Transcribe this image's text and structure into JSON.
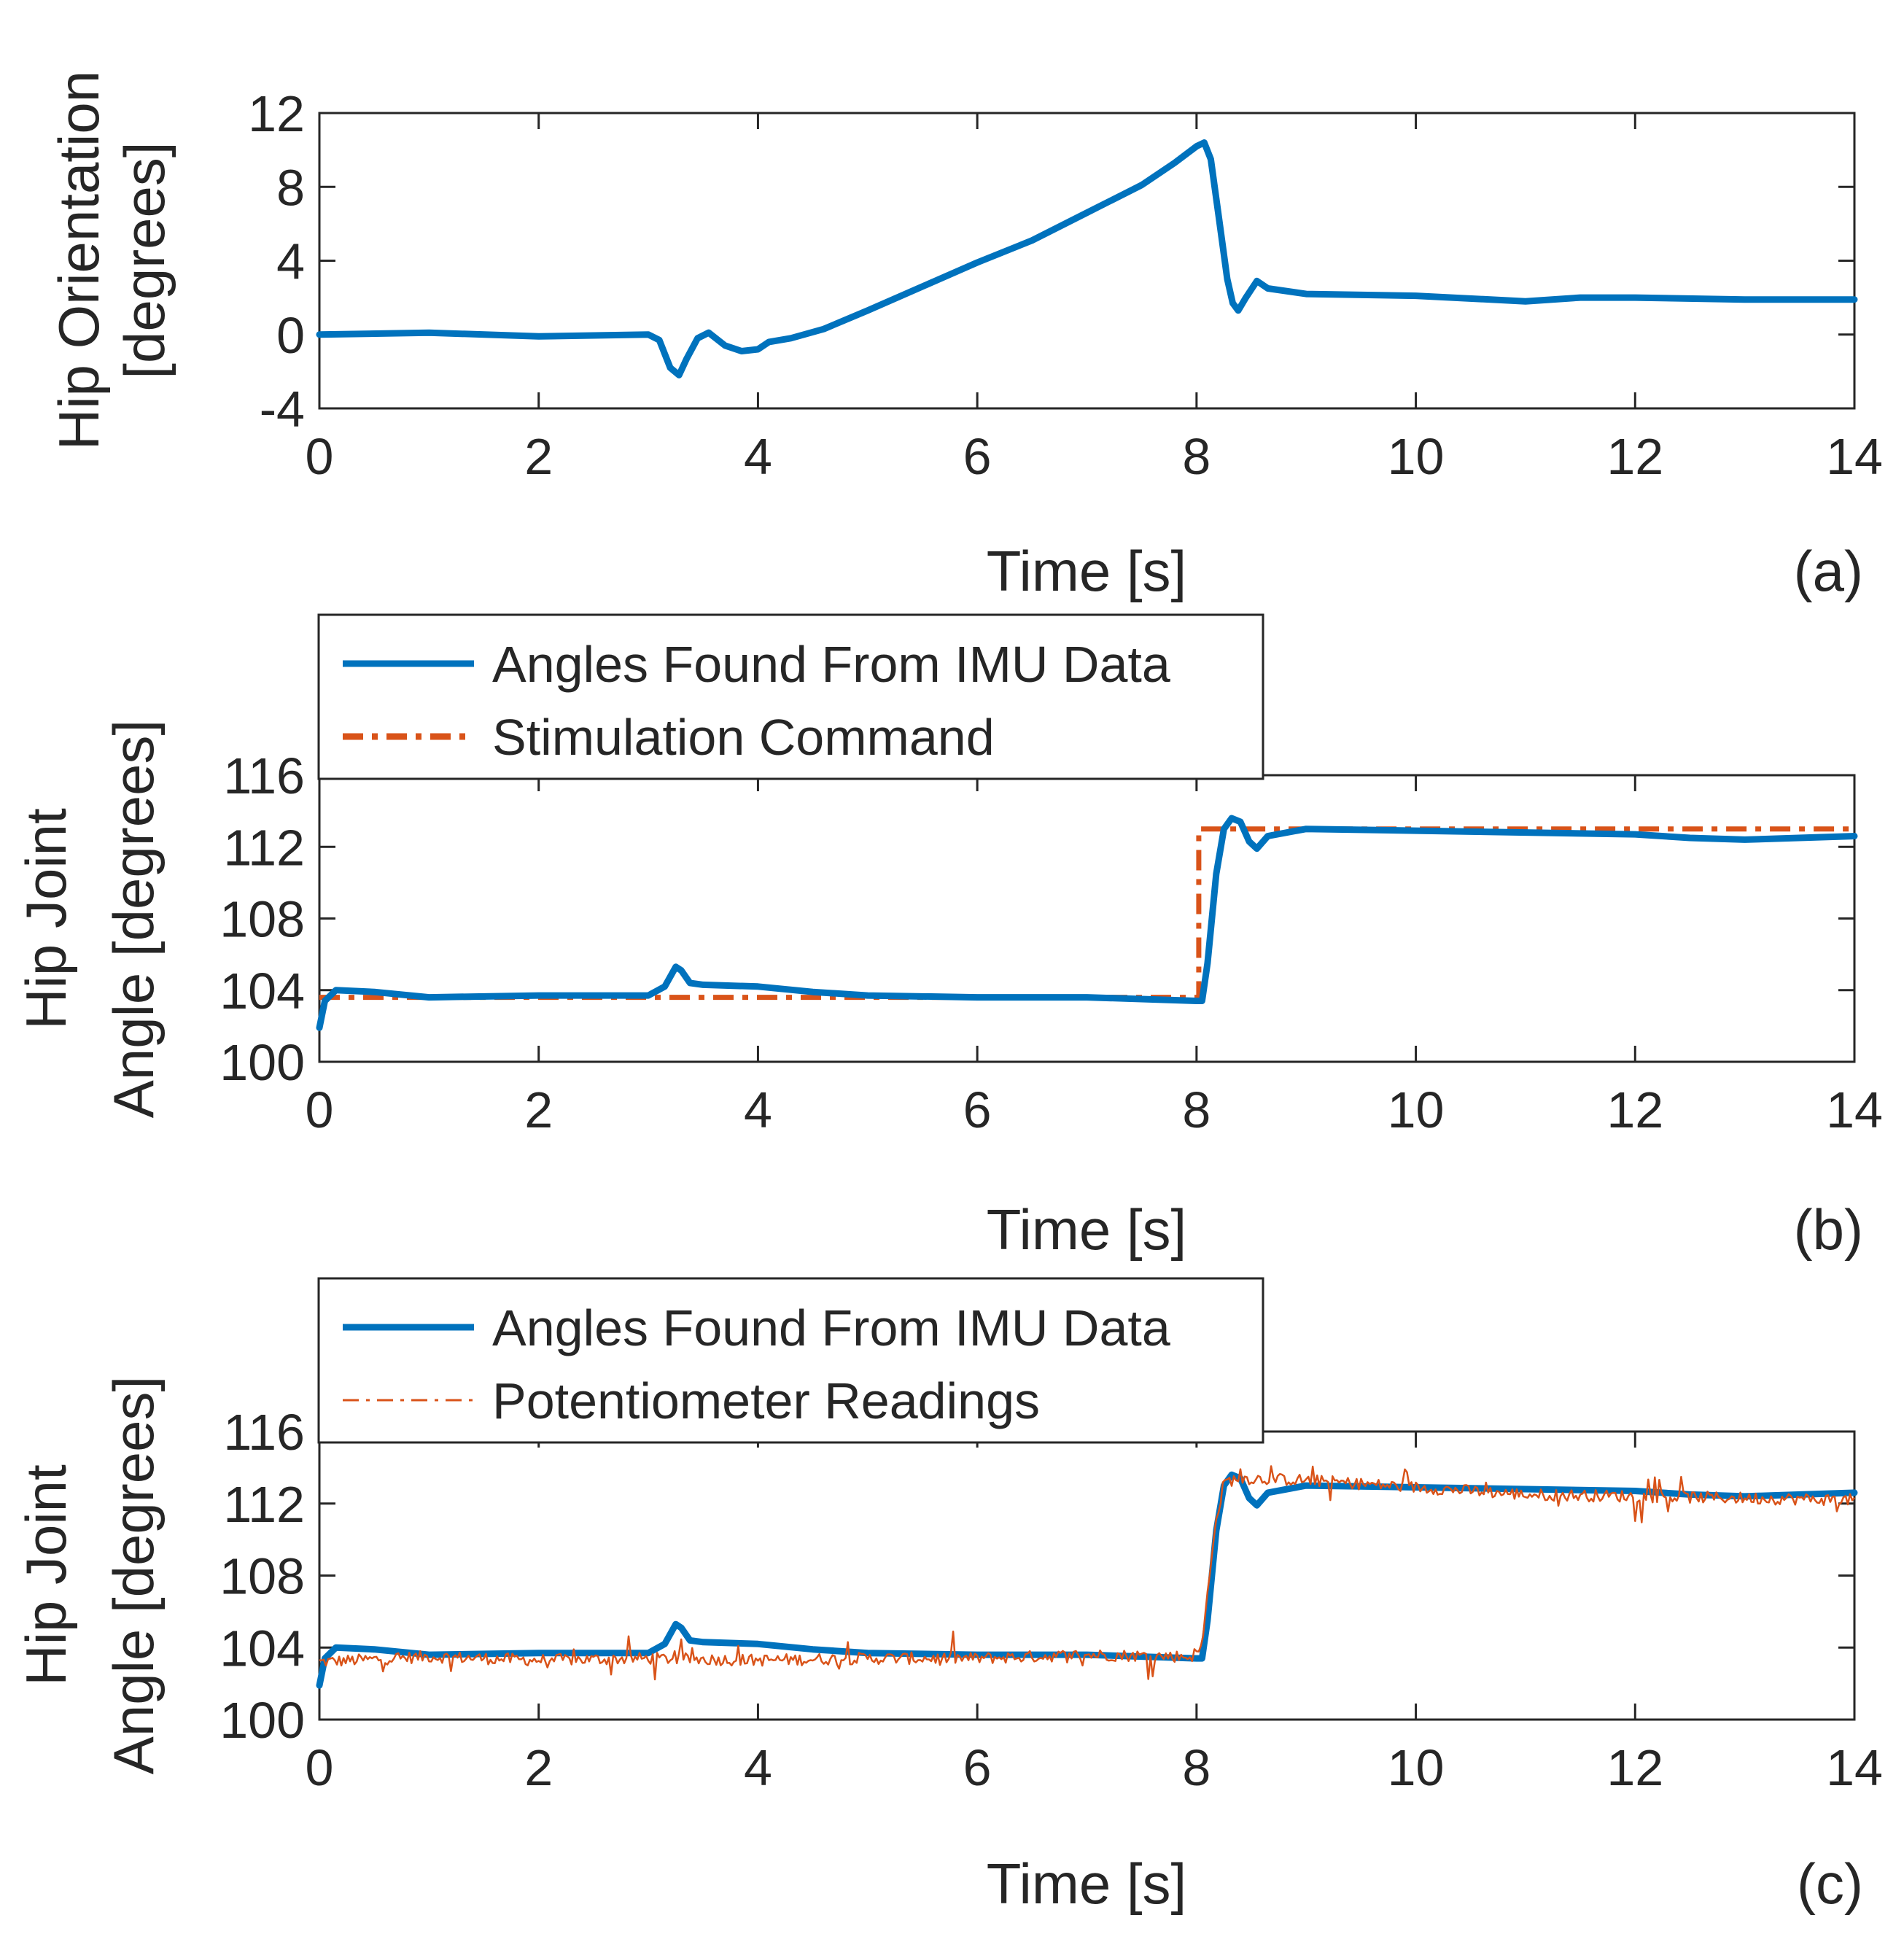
{
  "chart_data": [
    {
      "type": "line",
      "panel_label": "(a)",
      "xlabel": "Time [s]",
      "ylabel_lines": [
        "Hip Orientation",
        "[degrees]"
      ],
      "xlim": [
        0,
        14
      ],
      "ylim": [
        -4,
        12
      ],
      "xticks": [
        0,
        2,
        4,
        6,
        8,
        10,
        12,
        14
      ],
      "yticks": [
        -4,
        0,
        4,
        8,
        12
      ],
      "legend": null,
      "series": [
        {
          "name": "Hip Orientation",
          "color": "#0072BD",
          "style": "solid",
          "points": [
            [
              0,
              0
            ],
            [
              1,
              0.1
            ],
            [
              2,
              -0.1
            ],
            [
              3,
              0
            ],
            [
              3.1,
              -0.3
            ],
            [
              3.2,
              -1.8
            ],
            [
              3.28,
              -2.2
            ],
            [
              3.35,
              -1.3
            ],
            [
              3.45,
              -0.2
            ],
            [
              3.55,
              0.1
            ],
            [
              3.7,
              -0.6
            ],
            [
              3.85,
              -0.9
            ],
            [
              4,
              -0.8
            ],
            [
              4.1,
              -0.4
            ],
            [
              4.3,
              -0.2
            ],
            [
              4.6,
              0.3
            ],
            [
              5,
              1.3
            ],
            [
              5.5,
              2.6
            ],
            [
              6,
              3.9
            ],
            [
              6.5,
              5.1
            ],
            [
              7,
              6.6
            ],
            [
              7.5,
              8.1
            ],
            [
              7.8,
              9.3
            ],
            [
              8,
              10.2
            ],
            [
              8.07,
              10.4
            ],
            [
              8.13,
              9.5
            ],
            [
              8.2,
              6.5
            ],
            [
              8.28,
              3
            ],
            [
              8.33,
              1.7
            ],
            [
              8.38,
              1.3
            ],
            [
              8.45,
              2
            ],
            [
              8.55,
              2.9
            ],
            [
              8.65,
              2.5
            ],
            [
              9,
              2.2
            ],
            [
              10,
              2.1
            ],
            [
              11,
              1.8
            ],
            [
              11.5,
              2
            ],
            [
              12,
              2
            ],
            [
              13,
              1.9
            ],
            [
              14,
              1.9
            ]
          ]
        }
      ]
    },
    {
      "type": "line",
      "panel_label": "(b)",
      "xlabel": "Time [s]",
      "ylabel_lines": [
        "Hip Joint",
        "Angle [degrees]"
      ],
      "xlim": [
        0,
        14
      ],
      "ylim": [
        100,
        116
      ],
      "xticks": [
        0,
        2,
        4,
        6,
        8,
        10,
        12,
        14
      ],
      "yticks": [
        100,
        104,
        108,
        112,
        116
      ],
      "legend": [
        "Angles Found From IMU Data",
        "Stimulation Command"
      ],
      "series": [
        {
          "name": "Angles Found From IMU Data",
          "color": "#0072BD",
          "style": "solid",
          "points": [
            [
              0,
              101.9
            ],
            [
              0.05,
              103.4
            ],
            [
              0.15,
              104
            ],
            [
              0.5,
              103.9
            ],
            [
              1,
              103.6
            ],
            [
              2,
              103.7
            ],
            [
              3,
              103.7
            ],
            [
              3.15,
              104.2
            ],
            [
              3.25,
              105.3
            ],
            [
              3.3,
              105.1
            ],
            [
              3.38,
              104.4
            ],
            [
              3.5,
              104.3
            ],
            [
              4,
              104.2
            ],
            [
              4.5,
              103.9
            ],
            [
              5,
              103.7
            ],
            [
              6,
              103.6
            ],
            [
              7,
              103.6
            ],
            [
              7.5,
              103.5
            ],
            [
              8,
              103.4
            ],
            [
              8.05,
              103.4
            ],
            [
              8.1,
              105.5
            ],
            [
              8.18,
              110.5
            ],
            [
              8.25,
              113
            ],
            [
              8.32,
              113.6
            ],
            [
              8.4,
              113.4
            ],
            [
              8.48,
              112.3
            ],
            [
              8.55,
              111.9
            ],
            [
              8.65,
              112.6
            ],
            [
              9,
              113
            ],
            [
              10,
              112.9
            ],
            [
              11,
              112.8
            ],
            [
              12,
              112.7
            ],
            [
              12.5,
              112.5
            ],
            [
              13,
              112.4
            ],
            [
              14,
              112.6
            ]
          ]
        },
        {
          "name": "Stimulation Command",
          "color": "#D95319",
          "style": "dashdot",
          "points": [
            [
              0,
              103.6
            ],
            [
              8.02,
              103.6
            ],
            [
              8.02,
              113
            ],
            [
              14,
              113
            ]
          ]
        }
      ]
    },
    {
      "type": "line",
      "panel_label": "(c)",
      "xlabel": "Time [s]",
      "ylabel_lines": [
        "Hip Joint",
        "Angle [degrees]"
      ],
      "xlim": [
        0,
        14
      ],
      "ylim": [
        100,
        116
      ],
      "xticks": [
        0,
        2,
        4,
        6,
        8,
        10,
        12,
        14
      ],
      "yticks": [
        100,
        104,
        108,
        112,
        116
      ],
      "legend": [
        "Angles Found From IMU Data",
        "Potentiometer Readings"
      ],
      "series": [
        {
          "name": "Angles Found From IMU Data",
          "color": "#0072BD",
          "style": "solid",
          "points": [
            [
              0,
              101.9
            ],
            [
              0.05,
              103.4
            ],
            [
              0.15,
              104
            ],
            [
              0.5,
              103.9
            ],
            [
              1,
              103.6
            ],
            [
              2,
              103.7
            ],
            [
              3,
              103.7
            ],
            [
              3.15,
              104.2
            ],
            [
              3.25,
              105.3
            ],
            [
              3.3,
              105.1
            ],
            [
              3.38,
              104.4
            ],
            [
              3.5,
              104.3
            ],
            [
              4,
              104.2
            ],
            [
              4.5,
              103.9
            ],
            [
              5,
              103.7
            ],
            [
              6,
              103.6
            ],
            [
              7,
              103.6
            ],
            [
              7.5,
              103.5
            ],
            [
              8,
              103.4
            ],
            [
              8.05,
              103.4
            ],
            [
              8.1,
              105.5
            ],
            [
              8.18,
              110.5
            ],
            [
              8.25,
              113
            ],
            [
              8.32,
              113.6
            ],
            [
              8.4,
              113.4
            ],
            [
              8.48,
              112.3
            ],
            [
              8.55,
              111.9
            ],
            [
              8.65,
              112.6
            ],
            [
              9,
              113
            ],
            [
              10,
              112.9
            ],
            [
              11,
              112.8
            ],
            [
              12,
              112.7
            ],
            [
              12.5,
              112.5
            ],
            [
              13,
              112.4
            ],
            [
              14,
              112.6
            ]
          ]
        },
        {
          "name": "Potentiometer Readings",
          "color": "#D95319",
          "style": "dashdot-noisy",
          "points": [
            [
              0,
              103.2
            ],
            [
              1,
              103.5
            ],
            [
              2,
              103.3
            ],
            [
              3,
              103.4
            ],
            [
              4,
              103.3
            ],
            [
              5,
              103.4
            ],
            [
              6,
              103.4
            ],
            [
              7,
              103.6
            ],
            [
              7.95,
              103.5
            ],
            [
              8.05,
              104
            ],
            [
              8.15,
              110
            ],
            [
              8.25,
              113.2
            ],
            [
              8.4,
              113.4
            ],
            [
              9,
              113.3
            ],
            [
              10,
              112.9
            ],
            [
              11,
              112.5
            ],
            [
              12,
              112.4
            ],
            [
              13,
              112.3
            ],
            [
              14,
              112.2
            ]
          ],
          "noise_amplitude": 0.6
        }
      ]
    }
  ]
}
